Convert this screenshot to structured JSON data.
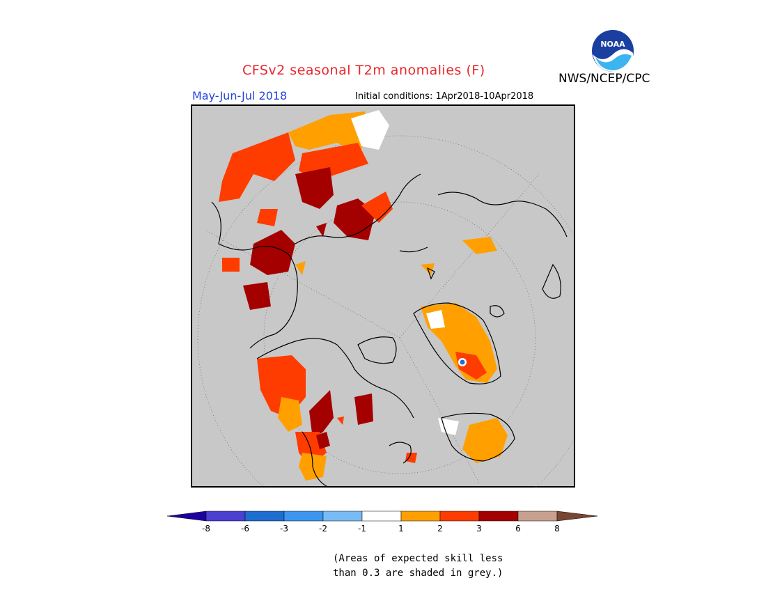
{
  "header": {
    "title": "CFSv2 seasonal T2m anomalies (F)",
    "period": "May-Jun-Jul 2018",
    "initial_conditions": "Initial conditions: 1Apr2018-10Apr2018",
    "agency": "NWS/NCEP/CPC",
    "logo_text": "NOAA"
  },
  "map": {
    "projection": "polar-stereographic-north",
    "background_color": "#c8c8c8",
    "coastline_color": "#000000",
    "grid_color": "#666666"
  },
  "colorbar": {
    "bins": [
      {
        "color": "#1e00a0"
      },
      {
        "color": "#4a40d2"
      },
      {
        "color": "#1e6ed2"
      },
      {
        "color": "#3c96f0"
      },
      {
        "color": "#78bcf5"
      },
      {
        "color": "#ffffff"
      },
      {
        "color": "#ffa000"
      },
      {
        "color": "#ff3c00"
      },
      {
        "color": "#a50000"
      },
      {
        "color": "#c8a090"
      },
      {
        "color": "#784632"
      }
    ],
    "tick_labels": [
      "-8",
      "-6",
      "-3",
      "-2",
      "-1",
      "1",
      "2",
      "3",
      "6",
      "8"
    ]
  },
  "note": {
    "line1": "(Areas of expected skill less",
    "line2": "than 0.3 are shaded in grey.)"
  }
}
